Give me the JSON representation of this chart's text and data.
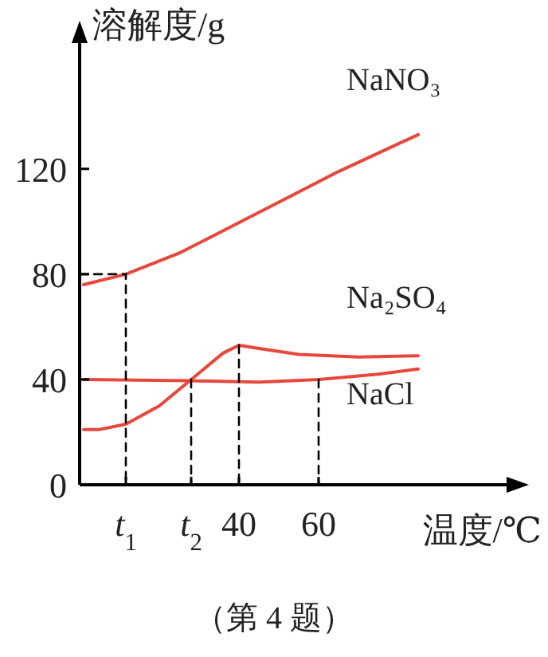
{
  "chart_data": {
    "type": "line",
    "xlabel": "温度/℃",
    "ylabel": "溶解度/g",
    "xlim": [
      0,
      108
    ],
    "ylim": [
      0,
      169
    ],
    "xticks": [
      {
        "value": 11.6,
        "label": null
      },
      {
        "value": 28,
        "label": null
      },
      40,
      60
    ],
    "yticks": [
      0,
      40,
      80,
      120
    ],
    "grid": false,
    "series": [
      {
        "name": "NaNO₃",
        "color": "#e8473b",
        "x": [
          1,
          11.6,
          25,
          47,
          65,
          85
        ],
        "values": [
          76,
          80,
          88,
          105,
          119,
          133
        ]
      },
      {
        "name": "Na₂SO₄",
        "color": "#e8473b",
        "x": [
          1,
          5,
          11.6,
          20,
          28,
          36,
          40,
          44,
          55,
          70,
          85
        ],
        "values": [
          21,
          21,
          23,
          30,
          40,
          50,
          53,
          52,
          49.5,
          48.5,
          49
        ]
      },
      {
        "name": "NaCl",
        "color": "#e8473b",
        "x": [
          1,
          28,
          45,
          60,
          75,
          85
        ],
        "values": [
          40,
          39.5,
          39,
          40,
          42,
          44
        ]
      },
      {
        "color": "#000000",
        "line_style": "dashed",
        "x": [
          0,
          11.6,
          11.6
        ],
        "values": [
          80,
          80,
          0
        ]
      },
      {
        "color": "#000000",
        "line_style": "dashed",
        "x": [
          28,
          28
        ],
        "values": [
          40,
          0
        ]
      },
      {
        "color": "#000000",
        "line_style": "dashed",
        "x": [
          40,
          40
        ],
        "values": [
          53,
          0
        ]
      },
      {
        "color": "#000000",
        "line_style": "dashed",
        "x": [
          60,
          60
        ],
        "values": [
          40,
          0
        ]
      }
    ],
    "annotations": [
      "t$_{1}$",
      "t$_{2}$",
      "（第 4 题）"
    ]
  }
}
